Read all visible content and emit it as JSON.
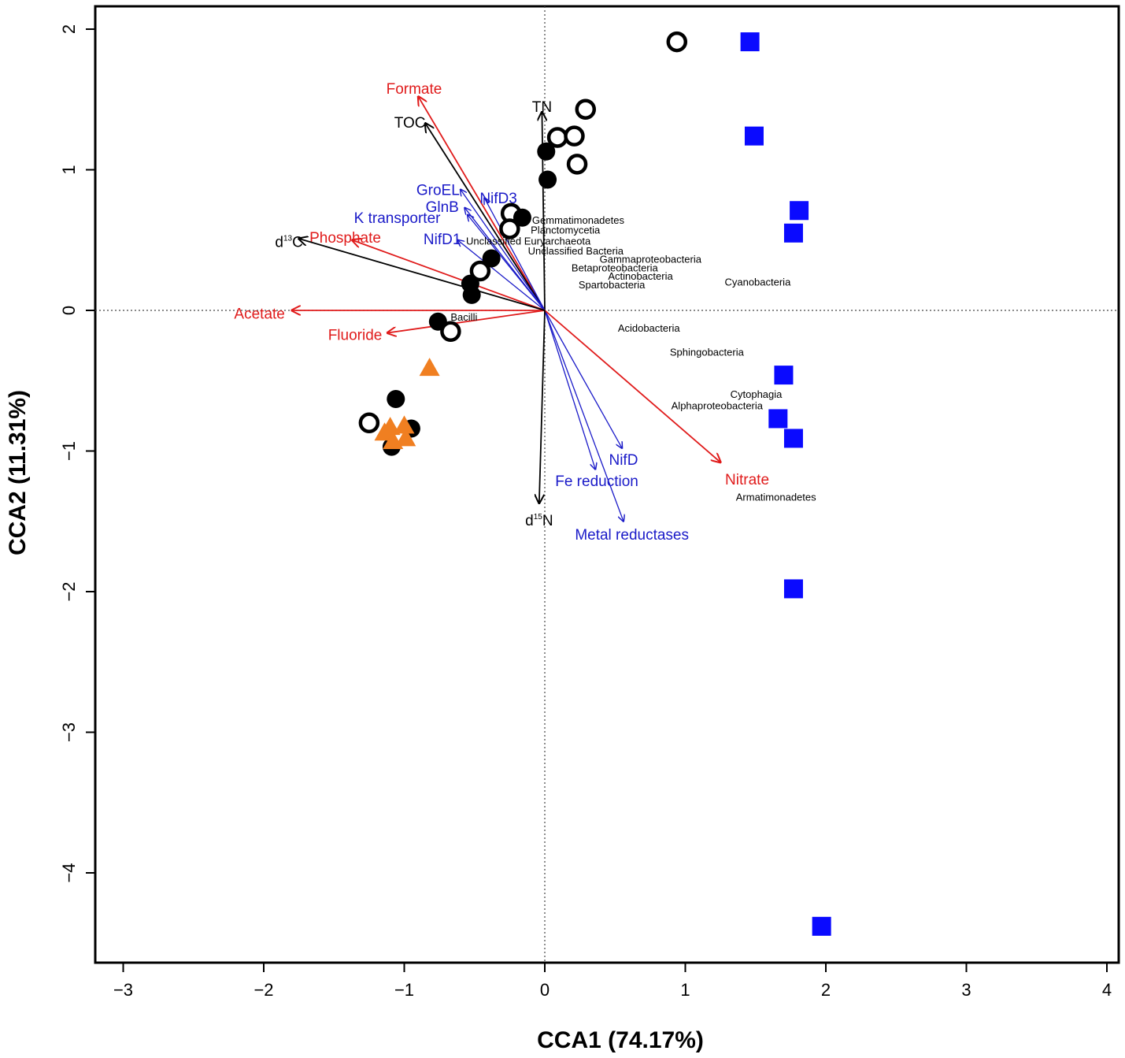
{
  "colors": {
    "env_vector": "#e01b1b",
    "gene_vector": "#1a1ac8",
    "iso_vector": "#000000",
    "square": "#0a0aff",
    "triangle": "#f07f21",
    "filled_circle": "#000000",
    "open_circle": "#000000"
  },
  "chart_data": {
    "type": "scatter",
    "title": "",
    "xlabel": "CCA1 (74.17%)",
    "ylabel": "CCA2 (11.31%)",
    "xlim": [
      -3.2,
      4.1
    ],
    "ylim": [
      -4.6,
      2.17
    ],
    "xticks": [
      -3,
      -2,
      -1,
      0,
      1,
      2,
      3,
      4
    ],
    "yticks": [
      -4,
      -3,
      -2,
      -1,
      0,
      1,
      2
    ],
    "xtick_labels": [
      "−3",
      "−2",
      "−1",
      "0",
      "1",
      "2",
      "3",
      "4"
    ],
    "ytick_labels": [
      "−4",
      "−3",
      "−2",
      "−1",
      "0",
      "1",
      "2"
    ],
    "reference_lines": {
      "x": 0,
      "y": 0,
      "style": "dotted"
    },
    "sample_series": [
      {
        "name": "open circles",
        "marker": "open-circle",
        "points": [
          [
            0.94,
            1.91
          ],
          [
            0.29,
            1.43
          ],
          [
            0.09,
            1.23
          ],
          [
            0.21,
            1.24
          ],
          [
            0.23,
            1.04
          ],
          [
            -0.24,
            0.69
          ],
          [
            -0.25,
            0.58
          ],
          [
            -0.46,
            0.28
          ],
          [
            -0.67,
            -0.15
          ],
          [
            -1.25,
            -0.8
          ]
        ]
      },
      {
        "name": "filled circles",
        "marker": "filled-circle",
        "points": [
          [
            0.01,
            1.13
          ],
          [
            0.02,
            0.93
          ],
          [
            -0.16,
            0.66
          ],
          [
            -0.38,
            0.37
          ],
          [
            -0.53,
            0.19
          ],
          [
            -0.52,
            0.11
          ],
          [
            -0.76,
            -0.08
          ],
          [
            -1.06,
            -0.63
          ],
          [
            -0.95,
            -0.84
          ],
          [
            -1.09,
            -0.97
          ]
        ]
      },
      {
        "name": "squares",
        "marker": "square",
        "points": [
          [
            1.46,
            1.91
          ],
          [
            1.49,
            1.24
          ],
          [
            1.81,
            0.71
          ],
          [
            1.77,
            0.55
          ],
          [
            1.7,
            -0.46
          ],
          [
            1.66,
            -0.77
          ],
          [
            1.77,
            -0.91
          ],
          [
            1.77,
            -1.98
          ],
          [
            1.97,
            -4.38
          ]
        ]
      },
      {
        "name": "triangles",
        "marker": "triangle",
        "points": [
          [
            -0.82,
            -0.41
          ],
          [
            -1.1,
            -0.83
          ],
          [
            -1.14,
            -0.87
          ],
          [
            -1.0,
            -0.82
          ],
          [
            -1.08,
            -0.93
          ],
          [
            -0.99,
            -0.91
          ]
        ]
      }
    ],
    "vectors": [
      {
        "label": "Formate",
        "group": "env",
        "x": -0.9,
        "y": 1.52,
        "label_x": -0.93,
        "label_y": 1.58,
        "anchor": "middle"
      },
      {
        "label": "TOC",
        "group": "iso",
        "x": -0.85,
        "y": 1.33,
        "label_x": -0.96,
        "label_y": 1.34,
        "anchor": "middle"
      },
      {
        "label": "TN",
        "group": "iso",
        "x": -0.02,
        "y": 1.41,
        "label_x": -0.02,
        "label_y": 1.45,
        "anchor": "middle"
      },
      {
        "label": "GroEL",
        "group": "gene",
        "x": -0.6,
        "y": 0.86,
        "label_x": -0.76,
        "label_y": 0.86,
        "anchor": "middle"
      },
      {
        "label": "NifD3",
        "group": "gene",
        "x": -0.43,
        "y": 0.8,
        "label_x": -0.33,
        "label_y": 0.8,
        "anchor": "middle"
      },
      {
        "label": "GlnB",
        "group": "gene",
        "x": -0.57,
        "y": 0.73,
        "label_x": -0.73,
        "label_y": 0.74,
        "anchor": "middle"
      },
      {
        "label": "K transporter",
        "group": "gene",
        "x": -0.55,
        "y": 0.68,
        "label_x": -1.05,
        "label_y": 0.66,
        "anchor": "middle"
      },
      {
        "label": "NifD1",
        "group": "gene",
        "x": -0.62,
        "y": 0.5,
        "label_x": -0.73,
        "label_y": 0.51,
        "anchor": "middle"
      },
      {
        "label": "Phosphate",
        "group": "env",
        "x": -1.37,
        "y": 0.5,
        "label_x": -1.42,
        "label_y": 0.52,
        "anchor": "middle"
      },
      {
        "label": "Acetate",
        "group": "env",
        "x": -1.8,
        "y": 0.0,
        "label_x": -2.03,
        "label_y": -0.02,
        "anchor": "middle"
      },
      {
        "label": "Fluoride",
        "group": "env",
        "x": -1.12,
        "y": -0.16,
        "label_x": -1.35,
        "label_y": -0.17,
        "anchor": "middle"
      },
      {
        "label": "NifD",
        "group": "gene",
        "x": 0.55,
        "y": -0.98,
        "label_x": 0.56,
        "label_y": -1.06,
        "anchor": "middle"
      },
      {
        "label": "Fe reduction",
        "group": "gene",
        "x": 0.36,
        "y": -1.13,
        "label_x": 0.37,
        "label_y": -1.21,
        "anchor": "middle"
      },
      {
        "label": "Metal reductases",
        "group": "gene",
        "x": 0.56,
        "y": -1.5,
        "label_x": 0.62,
        "label_y": -1.59,
        "anchor": "middle"
      },
      {
        "label": "Nitrate",
        "group": "env",
        "x": 1.25,
        "y": -1.08,
        "label_x": 1.44,
        "label_y": -1.2,
        "anchor": "middle"
      }
    ],
    "iso_labels": [
      {
        "label": "d13C",
        "base": "d",
        "sup": "13",
        "tail": "C",
        "vector": {
          "x": -1.75,
          "y": 0.51
        },
        "label_x": -1.82,
        "label_y": 0.49
      },
      {
        "label": "d15N",
        "base": "d",
        "sup": "15",
        "tail": "N",
        "vector": {
          "x": -0.04,
          "y": -1.37
        },
        "label_x": -0.04,
        "label_y": -1.49
      }
    ],
    "taxa": [
      {
        "label": "Gemmatimonadetes",
        "x": -0.09,
        "y": 0.64,
        "anchor": "start"
      },
      {
        "label": "Planctomycetia",
        "x": -0.1,
        "y": 0.57,
        "anchor": "start"
      },
      {
        "label": "Unclassified Euryarchaeota",
        "x": -0.56,
        "y": 0.49,
        "anchor": "start"
      },
      {
        "label": "Unclassified Bacteria",
        "x": -0.12,
        "y": 0.42,
        "anchor": "start"
      },
      {
        "label": "Gammaproteobacteria",
        "x": 0.39,
        "y": 0.36,
        "anchor": "start"
      },
      {
        "label": "Betaproteobacteria",
        "x": 0.19,
        "y": 0.3,
        "anchor": "start"
      },
      {
        "label": "Actinobacteria",
        "x": 0.45,
        "y": 0.24,
        "anchor": "start"
      },
      {
        "label": "Spartobacteria",
        "x": 0.24,
        "y": 0.18,
        "anchor": "start"
      },
      {
        "label": "Cyanobacteria",
        "x": 1.28,
        "y": 0.2,
        "anchor": "start"
      },
      {
        "label": "Bacilli",
        "x": -0.67,
        "y": -0.05,
        "anchor": "start"
      },
      {
        "label": "Acidobacteria",
        "x": 0.52,
        "y": -0.13,
        "anchor": "start"
      },
      {
        "label": "Sphingobacteria",
        "x": 0.89,
        "y": -0.3,
        "anchor": "start"
      },
      {
        "label": "Cytophagia",
        "x": 1.32,
        "y": -0.6,
        "anchor": "start"
      },
      {
        "label": "Alphaproteobacteria",
        "x": 0.9,
        "y": -0.68,
        "anchor": "start"
      },
      {
        "label": "Armatimonadetes",
        "x": 1.36,
        "y": -1.33,
        "anchor": "start"
      }
    ]
  }
}
